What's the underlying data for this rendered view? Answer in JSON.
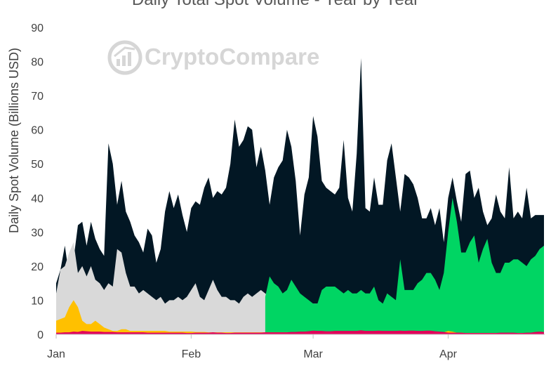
{
  "chart_data": {
    "type": "area",
    "title": "Daily Total Spot Volume - Year by Year",
    "ylabel": "Daily Spot Volume (Billions USD)",
    "xlabel": "",
    "ylim": [
      0,
      90
    ],
    "y_ticks": [
      0,
      10,
      20,
      30,
      40,
      50,
      60,
      70,
      80,
      90
    ],
    "x_tick_labels": [
      {
        "label": "Jan",
        "day": 0
      },
      {
        "label": "Feb",
        "day": 31
      },
      {
        "label": "Mar",
        "day": 59
      },
      {
        "label": "Apr",
        "day": 90
      }
    ],
    "x_range_days": [
      0,
      112
    ],
    "grid": false,
    "watermark": "CryptoCompare",
    "colors": {
      "dark": "#021724",
      "gray": "#d9d9d9",
      "green": "#00d563",
      "yellow": "#ffc000",
      "pink": "#e2005a"
    },
    "series": [
      {
        "color": "dark",
        "x": [
          0,
          1,
          2,
          3,
          4,
          5,
          6,
          7,
          8,
          9,
          10,
          11,
          12,
          13,
          14,
          15,
          16,
          17,
          18,
          19,
          20,
          21,
          22,
          23,
          24,
          25,
          26,
          27,
          28,
          29,
          30,
          31,
          32,
          33,
          34,
          35,
          36,
          37,
          38,
          39,
          40,
          41,
          42,
          43,
          44,
          45,
          46,
          47,
          48,
          49,
          50,
          51,
          52,
          53,
          54,
          55,
          56,
          57,
          58,
          59,
          60,
          61,
          62,
          63,
          64,
          65,
          66,
          67,
          68,
          69,
          70,
          71,
          72,
          73,
          74,
          75,
          76,
          77,
          78,
          79,
          80,
          81,
          82,
          83,
          84,
          85,
          86,
          87,
          88,
          89,
          90,
          91,
          92,
          93,
          94,
          95,
          96,
          97,
          98,
          99,
          100,
          101,
          102,
          103,
          104,
          105,
          106,
          107,
          108,
          109,
          110,
          111,
          112
        ],
        "y": [
          15,
          19,
          26,
          17,
          22,
          32,
          33,
          26,
          33,
          28,
          25,
          23,
          56,
          50,
          38,
          45,
          36,
          33,
          29,
          27,
          24,
          31,
          29,
          21,
          25,
          36,
          42,
          37,
          41,
          35,
          30,
          37,
          39,
          38,
          43,
          46,
          40,
          42,
          41,
          43,
          50,
          63,
          55,
          57,
          61,
          60,
          49,
          55,
          48,
          38,
          46,
          49,
          51,
          60,
          55,
          45,
          29,
          41,
          46,
          64,
          58,
          45,
          43,
          42,
          41,
          43,
          57,
          40,
          36,
          53,
          81,
          37,
          36,
          46,
          38,
          38,
          51,
          56,
          46,
          36,
          47,
          46,
          44,
          40,
          34,
          34,
          37,
          32,
          37,
          27,
          40,
          46,
          39,
          33,
          47,
          48,
          40,
          43,
          36,
          32,
          34,
          41,
          36,
          34,
          49,
          34,
          36,
          34,
          43,
          34,
          35,
          35,
          35
        ]
      },
      {
        "color": "gray",
        "x": [
          0,
          1,
          2,
          3,
          4,
          5,
          6,
          7,
          8,
          9,
          10,
          11,
          12,
          13,
          14,
          15,
          16,
          17,
          18,
          19,
          20,
          21,
          22,
          23,
          24,
          25,
          26,
          27,
          28,
          29,
          30,
          31,
          32,
          33,
          34,
          35,
          36,
          37,
          38,
          39,
          40,
          41,
          42,
          43,
          44,
          45,
          46,
          47,
          48,
          49,
          50,
          51,
          52,
          53,
          54,
          55,
          56,
          57,
          58,
          59,
          60,
          61,
          62,
          63,
          64,
          65,
          66,
          67,
          68,
          69,
          70,
          71,
          72,
          73,
          74,
          75,
          76,
          77,
          78,
          79,
          80,
          81,
          82,
          83,
          84,
          85,
          86,
          87,
          88,
          89,
          90,
          91,
          92,
          93,
          94,
          95,
          96,
          97,
          98,
          99,
          100,
          101,
          102,
          103,
          104,
          105,
          106,
          107,
          108,
          109,
          110,
          111,
          112
        ],
        "y": [
          12,
          19,
          20,
          24,
          27,
          18,
          20,
          17,
          20,
          16,
          15,
          13,
          15,
          14,
          25,
          24,
          18,
          14,
          14,
          12,
          13,
          12,
          11,
          10,
          11,
          9,
          10,
          10,
          11,
          10,
          11,
          13,
          15,
          11,
          10,
          13,
          16,
          13,
          11,
          11,
          10,
          10,
          9,
          11,
          12,
          11,
          12,
          13,
          12,
          11,
          10,
          10,
          11,
          10,
          10,
          9,
          10,
          10,
          9,
          9,
          9,
          10,
          10,
          10,
          11,
          12,
          11,
          9,
          11,
          10,
          10,
          9,
          9,
          10,
          8,
          8,
          12,
          10,
          9,
          9,
          8,
          7,
          8,
          7,
          7,
          7,
          7,
          6,
          7,
          6,
          6,
          8,
          7,
          7,
          6,
          6,
          7,
          7,
          8,
          7,
          7,
          8,
          8,
          8,
          9,
          8,
          8,
          9,
          8,
          9,
          10,
          9,
          9
        ]
      },
      {
        "color": "green",
        "x": [
          48,
          49,
          50,
          51,
          52,
          53,
          54,
          55,
          56,
          57,
          58,
          59,
          60,
          61,
          62,
          63,
          64,
          65,
          66,
          67,
          68,
          69,
          70,
          71,
          72,
          73,
          74,
          75,
          76,
          77,
          78,
          79,
          80,
          81,
          82,
          83,
          84,
          85,
          86,
          87,
          88,
          89,
          90,
          91,
          92,
          93,
          94,
          95,
          96,
          97,
          98,
          99,
          100,
          101,
          102,
          103,
          104,
          105,
          106,
          107,
          108,
          109,
          110,
          111,
          112
        ],
        "y": [
          11,
          17,
          15,
          14,
          12,
          13,
          16,
          14,
          12,
          11,
          10,
          9,
          9,
          13,
          14,
          14,
          14,
          13,
          12,
          13,
          12,
          12,
          13,
          12,
          12,
          14,
          10,
          9,
          12,
          11,
          10,
          22,
          13,
          13,
          13,
          15,
          16,
          18,
          18,
          16,
          13,
          18,
          30,
          40,
          33,
          24,
          24,
          27,
          29,
          21,
          25,
          28,
          21,
          18,
          18,
          21,
          21,
          22,
          22,
          21,
          20,
          22,
          23,
          25,
          26
        ]
      },
      {
        "color": "yellow",
        "x": [
          0,
          1,
          2,
          3,
          4,
          5,
          6,
          7,
          8,
          9,
          10,
          11,
          12,
          13,
          14,
          15,
          16,
          17,
          18,
          19,
          20,
          21,
          22,
          23,
          24,
          25,
          26,
          27,
          28,
          29,
          30,
          31,
          32,
          33,
          34,
          35,
          36,
          37,
          38,
          39,
          40,
          41,
          42,
          43,
          44,
          45,
          46,
          47,
          48,
          49,
          50,
          51,
          52,
          53,
          54,
          55,
          56,
          57,
          58,
          59,
          60,
          61,
          62,
          63,
          64,
          65,
          66,
          67,
          68,
          69,
          70,
          71,
          72,
          73,
          74,
          75,
          76,
          77,
          78,
          79,
          80,
          81,
          82,
          83,
          84,
          85,
          86,
          87,
          88,
          89,
          90,
          91,
          92,
          93,
          94,
          95,
          96,
          97,
          98,
          99,
          100,
          101,
          102,
          103,
          104,
          105,
          106,
          107,
          108,
          109,
          110,
          111,
          112
        ],
        "y": [
          4,
          4.5,
          5,
          8,
          10,
          8,
          4,
          3,
          3,
          4,
          3,
          2,
          1.5,
          1,
          1,
          1.5,
          1.5,
          1,
          1,
          1,
          1,
          1,
          1,
          1,
          1,
          1,
          0.8,
          0.8,
          0.8,
          0.8,
          0.8,
          0.8,
          0.7,
          0.7,
          0.7,
          0.6,
          0.6,
          0.6,
          0.6,
          0.6,
          0.6,
          0.6,
          0.6,
          0.6,
          0.6,
          0.6,
          0.6,
          0.6,
          0.6,
          0.6,
          0.6,
          0.6,
          0.6,
          0.6,
          0.6,
          0.6,
          0.6,
          0.6,
          0.6,
          0.6,
          0.6,
          0.6,
          0.6,
          0.6,
          0.6,
          0.6,
          0.6,
          0.6,
          0.6,
          0.6,
          0.6,
          0.6,
          0.6,
          0.6,
          0.6,
          0.6,
          0.6,
          0.6,
          0.6,
          0.6,
          0.6,
          0.6,
          0.6,
          0.6,
          0.6,
          0.6,
          0.6,
          0.6,
          0.6,
          0.6,
          1,
          0.8,
          0.5,
          0.5,
          0.4,
          0.4,
          0.4,
          0.4,
          0.4,
          0.4,
          0.4,
          0.4,
          0.4,
          0.4,
          0.4,
          0.4,
          0.4,
          0.4,
          0.4,
          0.4,
          0.4,
          0.4,
          0.4
        ]
      },
      {
        "color": "pink",
        "x": [
          0,
          1,
          2,
          3,
          4,
          5,
          6,
          7,
          8,
          9,
          10,
          11,
          12,
          13,
          14,
          15,
          16,
          17,
          18,
          19,
          20,
          21,
          22,
          23,
          24,
          25,
          26,
          27,
          28,
          29,
          30,
          31,
          32,
          33,
          34,
          35,
          36,
          37,
          38,
          39,
          40,
          41,
          42,
          43,
          44,
          45,
          46,
          47,
          48,
          49,
          50,
          51,
          52,
          53,
          54,
          55,
          56,
          57,
          58,
          59,
          60,
          61,
          62,
          63,
          64,
          65,
          66,
          67,
          68,
          69,
          70,
          71,
          72,
          73,
          74,
          75,
          76,
          77,
          78,
          79,
          80,
          81,
          82,
          83,
          84,
          85,
          86,
          87,
          88,
          89,
          90,
          91,
          92,
          93,
          94,
          95,
          96,
          97,
          98,
          99,
          100,
          101,
          102,
          103,
          104,
          105,
          106,
          107,
          108,
          109,
          110,
          111,
          112
        ],
        "y": [
          0.5,
          0.5,
          0.6,
          0.6,
          0.8,
          0.7,
          1,
          0.9,
          0.8,
          0.8,
          0.8,
          0.7,
          0.7,
          0.7,
          0.6,
          0.6,
          0.6,
          0.6,
          0.6,
          0.6,
          0.6,
          0.5,
          0.5,
          0.5,
          0.5,
          0.5,
          0.5,
          0.5,
          0.5,
          0.5,
          0.4,
          0.4,
          0.5,
          0.5,
          0.5,
          0.5,
          0.6,
          0.5,
          0.5,
          0.4,
          0.4,
          0.5,
          0.5,
          0.5,
          0.5,
          0.5,
          0.5,
          0.5,
          0.6,
          0.6,
          0.6,
          0.6,
          0.6,
          0.6,
          0.7,
          0.7,
          0.8,
          0.8,
          0.9,
          1.1,
          1,
          1,
          0.9,
          0.9,
          1,
          1,
          1,
          1,
          1,
          1,
          1.2,
          1,
          1,
          1,
          1.1,
          1,
          1,
          1,
          1,
          1.1,
          1,
          1.1,
          1.1,
          1,
          1,
          1.1,
          1.1,
          0.9,
          0.8,
          0.7,
          0.5,
          0.5,
          0.5,
          0.5,
          0.4,
          0.4,
          0.4,
          0.4,
          0.4,
          0.4,
          0.4,
          0.4,
          0.5,
          0.5,
          0.5,
          0.5,
          0.4,
          0.4,
          0.5,
          0.5,
          0.7,
          0.8,
          0.7
        ]
      }
    ]
  }
}
